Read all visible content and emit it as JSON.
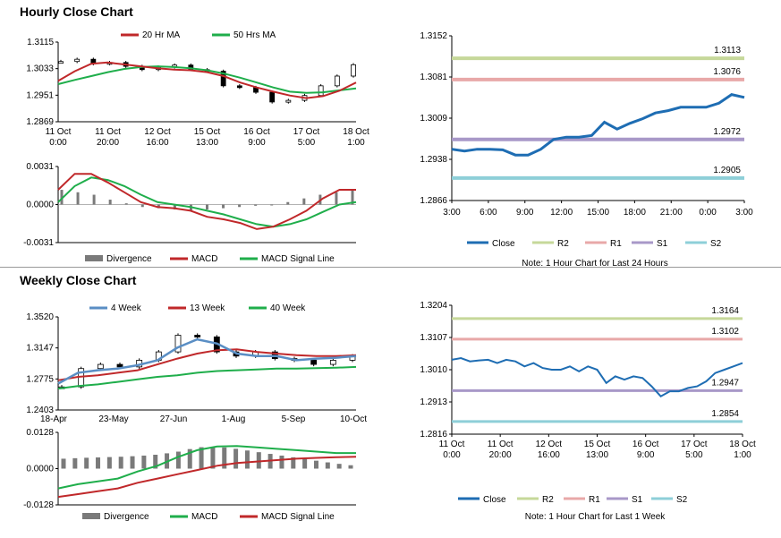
{
  "sections": {
    "hourly_title": "Hourly Close Chart",
    "weekly_title": "Weekly Close Chart"
  },
  "notes": {
    "hourly": "Note: 1 Hour Chart for Last 24 Hours",
    "weekly": "Note: 1 Hour Chart for Last 1 Week"
  },
  "colors": {
    "red": "#c0282a",
    "green": "#1fae4b",
    "blue": "#1e6db3",
    "steel": "#5a8ec4",
    "r2": "#c6d89a",
    "r1": "#e8a8a8",
    "s1": "#a898c8",
    "s2": "#8ecfd8",
    "bar": "#7a7a7a"
  },
  "chart_data": [
    {
      "id": "hourly_price",
      "type": "line",
      "legend": [
        "20 Hr MA",
        "50 Hrs MA"
      ],
      "y_ticks": [
        "1.3115",
        "1.3033",
        "1.2951",
        "1.2869"
      ],
      "ylim": [
        1.2869,
        1.3115
      ],
      "x_ticks": [
        [
          "11 Oct",
          "0:00"
        ],
        [
          "11 Oct",
          "20:00"
        ],
        [
          "12 Oct",
          "16:00"
        ],
        [
          "15 Oct",
          "13:00"
        ],
        [
          "16 Oct",
          "9:00"
        ],
        [
          "17 Oct",
          "5:00"
        ],
        [
          "18 Oct",
          "1:00"
        ]
      ],
      "series": [
        {
          "name": "20 Hr MA",
          "values": [
            1.2995,
            1.3025,
            1.3048,
            1.3052,
            1.3046,
            1.304,
            1.3034,
            1.303,
            1.3028,
            1.3022,
            1.301,
            1.299,
            1.2975,
            1.2962,
            1.295,
            1.2942,
            1.2948,
            1.2965,
            1.299
          ]
        },
        {
          "name": "50 Hrs MA",
          "values": [
            1.2985,
            1.2998,
            1.301,
            1.3022,
            1.3032,
            1.3038,
            1.304,
            1.3038,
            1.3034,
            1.3028,
            1.3018,
            1.3005,
            1.299,
            1.2975,
            1.2962,
            1.2958,
            1.296,
            1.2966,
            1.2972
          ]
        },
        {
          "name": "Price",
          "values": [
            1.3055,
            1.3062,
            1.3048,
            1.3052,
            1.304,
            1.303,
            1.3038,
            1.3044,
            1.303,
            1.3025,
            1.298,
            1.2975,
            1.296,
            1.293,
            1.2935,
            1.295,
            1.298,
            1.301,
            1.3045
          ]
        }
      ]
    },
    {
      "id": "hourly_macd",
      "type": "line",
      "legend": [
        "Divergence",
        "MACD",
        "MACD Signal Line"
      ],
      "y_ticks": [
        "0.0031",
        "0.0000",
        "-0.0031"
      ],
      "ylim": [
        -0.0031,
        0.0031
      ],
      "series": [
        {
          "name": "Divergence",
          "values": [
            0.0012,
            0.001,
            0.0008,
            0.0004,
            0.0001,
            -0.0002,
            -0.0003,
            -0.0004,
            -0.0005,
            -0.0004,
            -0.0003,
            -0.0002,
            -0.0001,
            0.0,
            0.0002,
            0.0005,
            0.0008,
            0.001,
            0.0012
          ]
        },
        {
          "name": "MACD",
          "values": [
            0.0012,
            0.0025,
            0.0025,
            0.0018,
            0.001,
            0.0002,
            -0.0002,
            -0.0003,
            -0.0005,
            -0.001,
            -0.0012,
            -0.0015,
            -0.002,
            -0.0018,
            -0.0012,
            -0.0005,
            0.0005,
            0.0012,
            0.0012
          ]
        },
        {
          "name": "MACD Signal Line",
          "values": [
            0.0002,
            0.0015,
            0.0022,
            0.002,
            0.0015,
            0.0008,
            0.0002,
            0.0,
            -0.0002,
            -0.0005,
            -0.0008,
            -0.0012,
            -0.0016,
            -0.0018,
            -0.0016,
            -0.0012,
            -0.0006,
            0.0,
            0.0002
          ]
        }
      ]
    },
    {
      "id": "hourly_levels",
      "type": "line",
      "y_ticks": [
        "1.3152",
        "1.3081",
        "1.3009",
        "1.2938",
        "1.2866"
      ],
      "ylim": [
        1.2866,
        1.3152
      ],
      "x_ticks": [
        "3:00",
        "6:00",
        "9:00",
        "12:00",
        "15:00",
        "18:00",
        "21:00",
        "0:00",
        "3:00"
      ],
      "levels": [
        {
          "name": "R2",
          "value": 1.3113,
          "label": "1.3113"
        },
        {
          "name": "R1",
          "value": 1.3076,
          "label": "1.3076"
        },
        {
          "name": "S1",
          "value": 1.2972,
          "label": "1.2972"
        },
        {
          "name": "S2",
          "value": 1.2905,
          "label": "1.2905"
        }
      ],
      "legend": [
        "Close",
        "R2",
        "R1",
        "S1",
        "S2"
      ],
      "close": [
        1.2955,
        1.2952,
        1.2955,
        1.2955,
        1.2954,
        1.2945,
        1.2945,
        1.2955,
        1.2972,
        1.2976,
        1.2976,
        1.2979,
        1.3002,
        1.299,
        1.3,
        1.3008,
        1.3018,
        1.3022,
        1.3028,
        1.3028,
        1.3028,
        1.3035,
        1.305,
        1.3045
      ]
    },
    {
      "id": "weekly_price",
      "type": "line",
      "legend": [
        "4 Week",
        "13 Week",
        "40 Week"
      ],
      "y_ticks": [
        "1.3520",
        "1.3147",
        "1.2775",
        "1.2403"
      ],
      "ylim": [
        1.2403,
        1.352
      ],
      "x_ticks": [
        "18-Apr",
        "23-May",
        "27-Jun",
        "1-Aug",
        "5-Sep",
        "10-Oct"
      ],
      "series": [
        {
          "name": "4 Week",
          "values": [
            1.272,
            1.285,
            1.288,
            1.29,
            1.294,
            1.3,
            1.315,
            1.325,
            1.32,
            1.308,
            1.305,
            1.305,
            1.3,
            1.302,
            1.303,
            1.305
          ]
        },
        {
          "name": "13 Week",
          "values": [
            1.276,
            1.28,
            1.282,
            1.285,
            1.288,
            1.295,
            1.302,
            1.308,
            1.312,
            1.313,
            1.31,
            1.308,
            1.306,
            1.305,
            1.305,
            1.306
          ]
        },
        {
          "name": "40 Week",
          "values": [
            1.266,
            1.269,
            1.271,
            1.274,
            1.277,
            1.28,
            1.282,
            1.285,
            1.287,
            1.288,
            1.289,
            1.29,
            1.29,
            1.2905,
            1.291,
            1.292
          ]
        },
        {
          "name": "Price",
          "values": [
            1.268,
            1.29,
            1.295,
            1.292,
            1.3,
            1.31,
            1.33,
            1.328,
            1.31,
            1.305,
            1.31,
            1.302,
            1.3,
            1.295,
            1.3,
            1.305
          ]
        }
      ]
    },
    {
      "id": "weekly_macd",
      "type": "line",
      "legend": [
        "Divergence",
        "MACD",
        "MACD Signal Line"
      ],
      "y_ticks": [
        "0.0128",
        "0.0000",
        "-0.0128"
      ],
      "ylim": [
        -0.0128,
        0.0128
      ],
      "series": [
        {
          "name": "Divergence",
          "values": [
            0.0035,
            0.0038,
            0.004,
            0.0042,
            0.0045,
            0.005,
            0.006,
            0.0075,
            0.0078,
            0.007,
            0.006,
            0.005,
            0.004,
            0.003,
            0.002,
            0.0012
          ]
        },
        {
          "name": "MACD",
          "values": [
            -0.007,
            -0.0055,
            -0.0045,
            -0.0035,
            -0.001,
            0.001,
            0.004,
            0.0065,
            0.0078,
            0.008,
            0.0075,
            0.007,
            0.0065,
            0.006,
            0.0055,
            0.0055
          ]
        },
        {
          "name": "MACD Signal Line",
          "values": [
            -0.01,
            -0.009,
            -0.008,
            -0.007,
            -0.005,
            -0.0035,
            -0.002,
            -0.0005,
            0.001,
            0.002,
            0.0025,
            0.003,
            0.0035,
            0.0038,
            0.004,
            0.0042
          ]
        }
      ]
    },
    {
      "id": "weekly_levels",
      "type": "line",
      "y_ticks": [
        "1.3204",
        "1.3107",
        "1.3010",
        "1.2913",
        "1.2816"
      ],
      "ylim": [
        1.2816,
        1.3204
      ],
      "x_ticks": [
        [
          "11 Oct",
          "0:00"
        ],
        [
          "11 Oct",
          "20:00"
        ],
        [
          "12 Oct",
          "16:00"
        ],
        [
          "15 Oct",
          "13:00"
        ],
        [
          "16 Oct",
          "9:00"
        ],
        [
          "17 Oct",
          "5:00"
        ],
        [
          "18 Oct",
          "1:00"
        ]
      ],
      "levels": [
        {
          "name": "R2",
          "value": 1.3164,
          "label": "1.3164"
        },
        {
          "name": "R1",
          "value": 1.3102,
          "label": "1.3102"
        },
        {
          "name": "S1",
          "value": 1.2947,
          "label": "1.2947"
        },
        {
          "name": "S2",
          "value": 1.2854,
          "label": "1.2854"
        }
      ],
      "legend": [
        "Close",
        "R2",
        "R1",
        "S1",
        "S2"
      ],
      "close": [
        1.304,
        1.3045,
        1.3035,
        1.3038,
        1.304,
        1.303,
        1.304,
        1.3035,
        1.302,
        1.303,
        1.3015,
        1.301,
        1.301,
        1.302,
        1.3005,
        1.302,
        1.301,
        1.297,
        1.299,
        1.298,
        1.299,
        1.2985,
        1.296,
        1.293,
        1.2945,
        1.2945,
        1.2955,
        1.296,
        1.2975,
        1.3,
        1.301,
        1.302,
        1.303
      ]
    }
  ]
}
